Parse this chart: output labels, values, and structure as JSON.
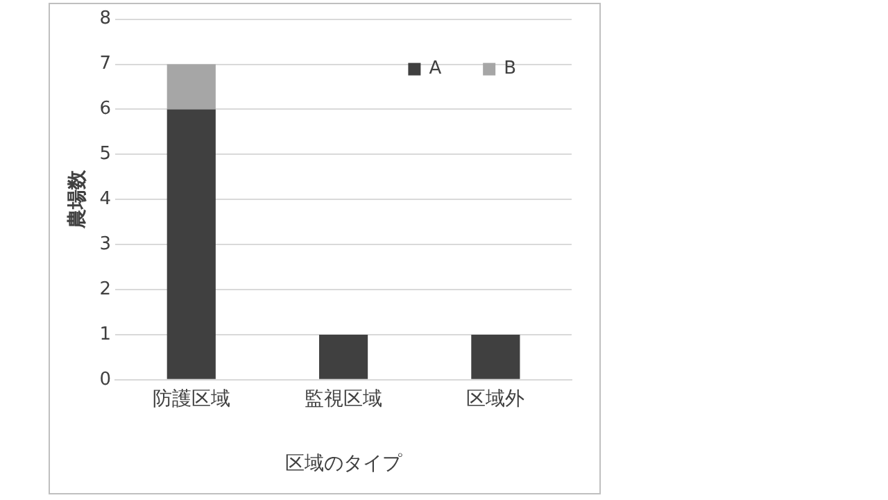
{
  "chart_data": {
    "type": "bar",
    "stacked": true,
    "xlabel": "区域のタイプ",
    "ylabel": "農場数",
    "categories": [
      "防護区域",
      "監視区域",
      "区域外"
    ],
    "series": [
      {
        "name": "A",
        "color": "#404040",
        "values": [
          6,
          1,
          1
        ]
      },
      {
        "name": "B",
        "color": "#a6a6a6",
        "values": [
          1,
          0,
          0
        ]
      }
    ],
    "ylim": [
      0,
      8
    ],
    "yticks": [
      0,
      1,
      2,
      3,
      4,
      5,
      6,
      7,
      8
    ],
    "grid": "y",
    "legend": "top right"
  }
}
